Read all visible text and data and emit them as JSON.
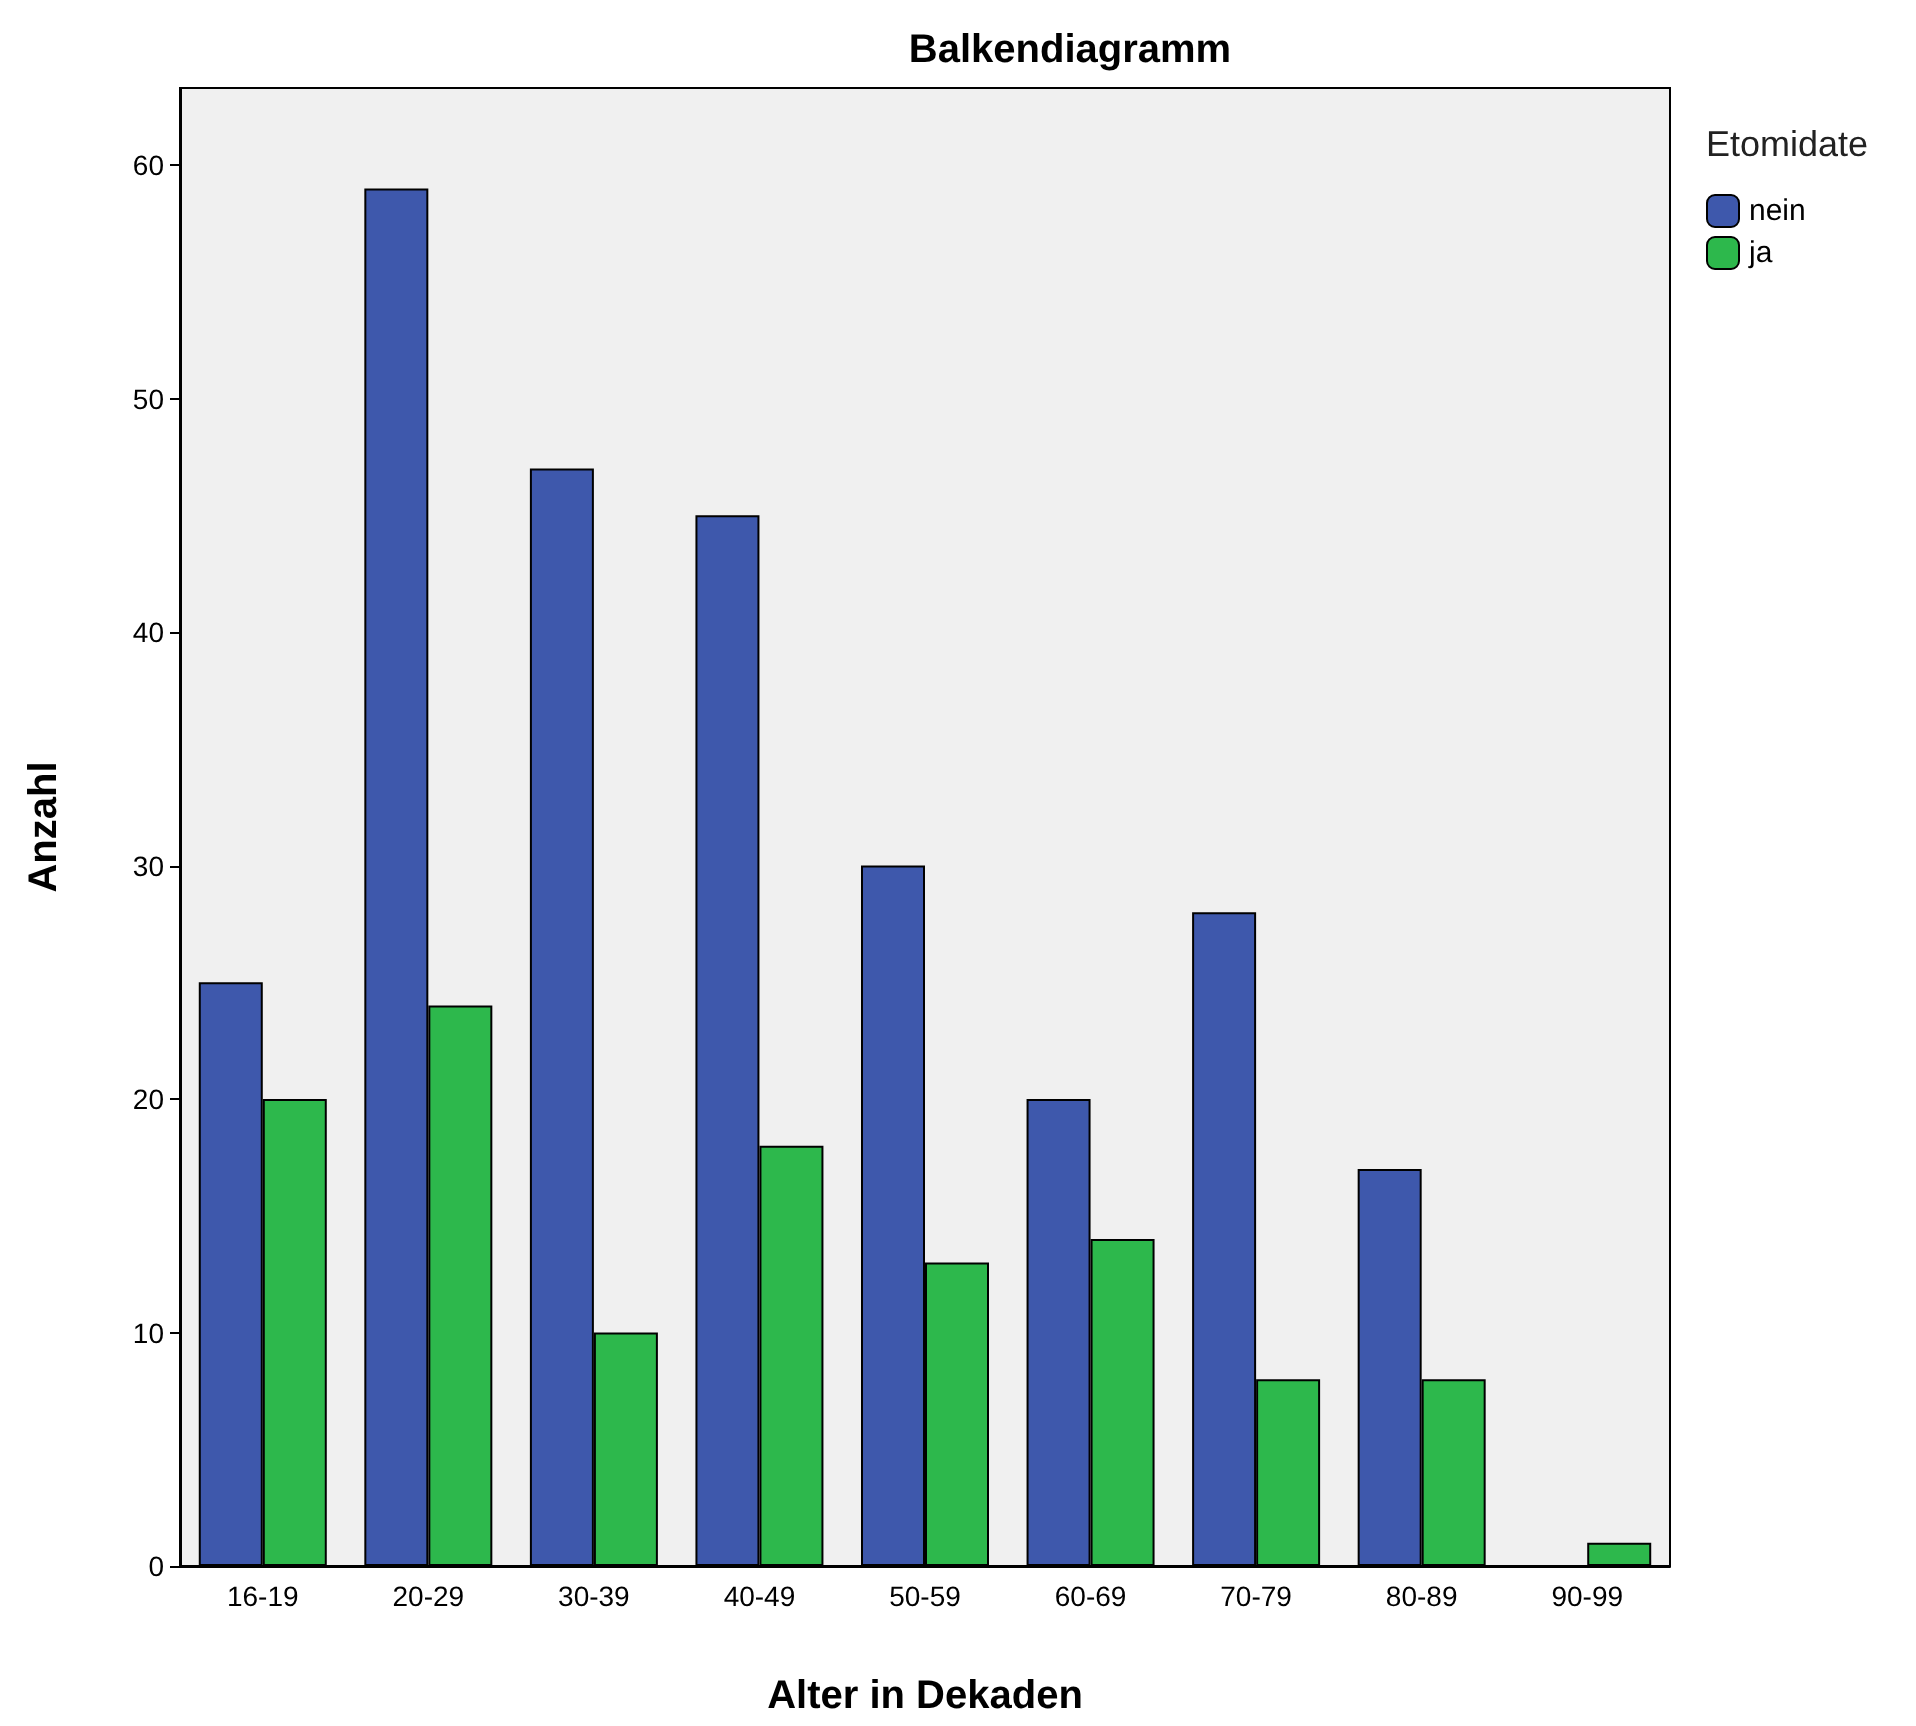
{
  "chart_data": {
    "type": "bar",
    "title": "Balkendiagramm",
    "xlabel": "Alter in Dekaden",
    "ylabel": "Anzahl",
    "legend_title": "Etomidate",
    "categories": [
      "16-19",
      "20-29",
      "30-39",
      "40-49",
      "50-59",
      "60-69",
      "70-79",
      "80-89",
      "90-99"
    ],
    "series": [
      {
        "name": "nein",
        "color": "#3e58ac",
        "values": [
          25,
          59,
          47,
          45,
          30,
          20,
          28,
          17,
          null
        ]
      },
      {
        "name": "ja",
        "color": "#2db84c",
        "values": [
          20,
          24,
          10,
          18,
          13,
          14,
          8,
          8,
          1
        ]
      }
    ],
    "ylim": [
      0,
      63.3
    ],
    "yticks": [
      0,
      10,
      20,
      30,
      40,
      50,
      60
    ],
    "grid": false,
    "legend": "top right"
  }
}
